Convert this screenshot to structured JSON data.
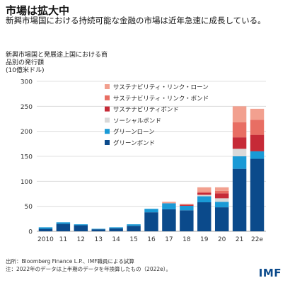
{
  "title": "市場は拡大中",
  "subtitle": "新興市場国における持続可能な金融の市場は近年急速に成長している。",
  "ylabel_lines": [
    "新興市場国と発展途上国における商",
    "品別の発行額",
    "(10億米ドル)"
  ],
  "source_lines": [
    "出所：Bloomberg Finance L.P.、IMF職員による試算",
    "注：2022年のデータは上半期のデータを年換算したもの（2022e）。"
  ],
  "logo": "IMF",
  "colors": {
    "green_bond": "#0b4a8b",
    "green_loan": "#1a9ad6",
    "social_bond": "#d9d9d9",
    "sustainability_bond": "#c62a37",
    "sll_bond": "#e86e63",
    "sll_loan": "#f2a08f"
  },
  "chart_data": {
    "type": "bar",
    "stacked": true,
    "categories": [
      "2010",
      "11",
      "12",
      "13",
      "14",
      "15",
      "16",
      "17",
      "18",
      "19",
      "20",
      "21",
      "22e"
    ],
    "ylim": [
      0,
      300
    ],
    "yticks": [
      0,
      50,
      100,
      150,
      200,
      250,
      300
    ],
    "grid": true,
    "legend_position": "top-right",
    "series": [
      {
        "name": "グリーンボンド",
        "color_key": "green_bond",
        "values": [
          5,
          15,
          12,
          4,
          6,
          11,
          38,
          44,
          42,
          58,
          48,
          125,
          145
        ]
      },
      {
        "name": "グリーンローン",
        "color_key": "green_loan",
        "values": [
          3,
          3,
          2,
          1,
          2,
          3,
          7,
          12,
          9,
          12,
          11,
          25,
          15
        ]
      },
      {
        "name": "ソーシャルボンド",
        "color_key": "social_bond",
        "values": [
          0,
          0,
          0,
          0,
          0,
          0,
          0,
          0,
          0,
          3,
          7,
          15,
          0
        ]
      },
      {
        "name": "サステナビリティボンド",
        "color_key": "sustainability_bond",
        "values": [
          0,
          0,
          0,
          0,
          0,
          0,
          0,
          0,
          2,
          4,
          10,
          23,
          33
        ]
      },
      {
        "name": "サステナビリティ・リンク・ボンド",
        "color_key": "sll_bond",
        "values": [
          0,
          0,
          0,
          0,
          0,
          0,
          0,
          0,
          0,
          2,
          5,
          30,
          30
        ]
      },
      {
        "name": "サステナビリティ・リンク・ローン",
        "color_key": "sll_loan",
        "values": [
          0,
          0,
          0,
          0,
          0,
          0,
          0,
          3,
          2,
          9,
          7,
          32,
          22
        ]
      }
    ]
  }
}
